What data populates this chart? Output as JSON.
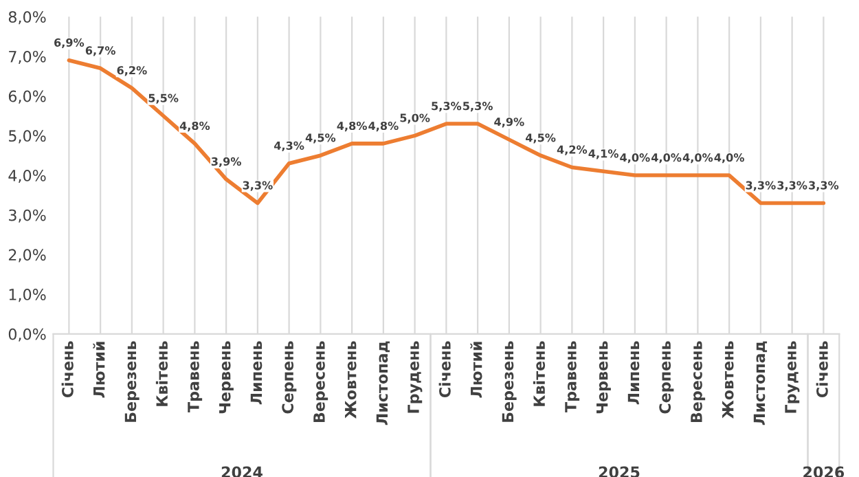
{
  "chart_data": {
    "type": "line",
    "categories": [
      "Січень",
      "Лютий",
      "Березень",
      "Квітень",
      "Травень",
      "Червень",
      "Липень",
      "Серпень",
      "Вересень",
      "Жовтень",
      "Листопад",
      "Грудень",
      "Січень",
      "Лютий",
      "Березень",
      "Квітень",
      "Травень",
      "Червень",
      "Липень",
      "Серпень",
      "Вересень",
      "Жовтень",
      "Листопад",
      "Грудень",
      "Січень"
    ],
    "series": [
      {
        "color": "#ed7d31",
        "values": [
          6.9,
          6.7,
          6.2,
          5.5,
          4.8,
          3.9,
          3.3,
          4.3,
          4.5,
          4.8,
          4.8,
          5.0,
          5.3,
          5.3,
          4.9,
          4.5,
          4.2,
          4.1,
          4.0,
          4.0,
          4.0,
          4.0,
          3.3,
          3.3,
          3.3
        ],
        "value_labels": [
          "6,9%",
          "6,7%",
          "6,2%",
          "5,5%",
          "4,8%",
          "3,9%",
          "3,3%",
          "4,3%",
          "4,5%",
          "4,8%",
          "4,8%",
          "5,0%",
          "5,3%",
          "5,3%",
          "4,9%",
          "4,5%",
          "4,2%",
          "4,1%",
          "4,0%",
          "4,0%",
          "4,0%",
          "4,0%",
          "3,3%",
          "3,3%",
          "3,3%"
        ]
      }
    ],
    "ylim": [
      0,
      8
    ],
    "yticks": [
      {
        "value": 0,
        "label": "0,0%"
      },
      {
        "value": 1,
        "label": "1,0%"
      },
      {
        "value": 2,
        "label": "2,0%"
      },
      {
        "value": 3,
        "label": "3,0%"
      },
      {
        "value": 4,
        "label": "4,0%"
      },
      {
        "value": 5,
        "label": "5,0%"
      },
      {
        "value": 6,
        "label": "6,0%"
      },
      {
        "value": 7,
        "label": "7,0%"
      },
      {
        "value": 8,
        "label": "8,0%"
      }
    ],
    "annotations": [
      "2024",
      "2025",
      "2026"
    ],
    "grid": "x",
    "marker": "none",
    "line_style": "solid"
  }
}
